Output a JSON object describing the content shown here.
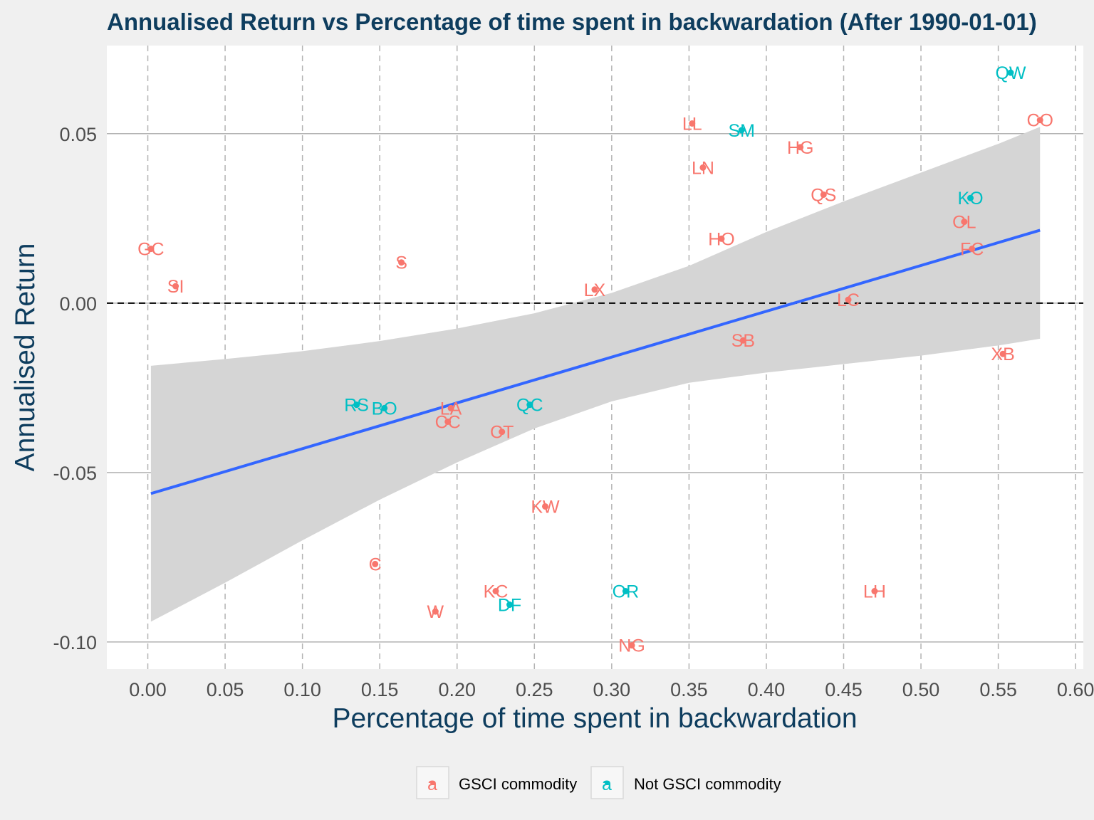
{
  "chart_data": {
    "type": "scatter",
    "title": "Annualised Return vs Percentage of time spent in backwardation (After 1990-01-01)",
    "xlabel": "Percentage of time spent in backwardation",
    "ylabel": "Annualised Return",
    "xlim": [
      -0.0265,
      0.605
    ],
    "ylim": [
      -0.108,
      0.076
    ],
    "x_ticks": [
      0.0,
      0.05,
      0.1,
      0.15,
      0.2,
      0.25,
      0.3,
      0.35,
      0.4,
      0.45,
      0.5,
      0.55,
      0.6
    ],
    "x_tick_labels": [
      "0.00",
      "0.05",
      "0.10",
      "0.15",
      "0.20",
      "0.25",
      "0.30",
      "0.35",
      "0.40",
      "0.45",
      "0.50",
      "0.55",
      "0.60"
    ],
    "y_ticks": [
      -0.1,
      -0.05,
      0.0,
      0.05
    ],
    "y_tick_labels": [
      "-0.10",
      "-0.05",
      "0.00",
      "0.05"
    ],
    "reference_line_y": 0,
    "grid": true,
    "legend": {
      "position": "bottom",
      "entries": [
        {
          "name": "GSCI commodity",
          "key": "gsci",
          "glyph": "a",
          "color": "#f8766d"
        },
        {
          "name": "Not GSCI commodity",
          "key": "not_gsci",
          "glyph": "a",
          "color": "#00bfc4"
        }
      ]
    },
    "trend_line": {
      "x": [
        0.002,
        0.577
      ],
      "y": [
        -0.0562,
        0.0215
      ],
      "color": "#3366ff"
    },
    "confidence_band": {
      "x": [
        0.002,
        0.05,
        0.1,
        0.15,
        0.2,
        0.25,
        0.3,
        0.35,
        0.4,
        0.45,
        0.5,
        0.55,
        0.577
      ],
      "upper": [
        -0.0185,
        -0.0165,
        -0.0142,
        -0.0112,
        -0.0075,
        -0.003,
        0.003,
        0.011,
        0.021,
        0.03,
        0.0385,
        0.047,
        0.052
      ],
      "lower": [
        -0.094,
        -0.0825,
        -0.07,
        -0.058,
        -0.047,
        -0.037,
        -0.029,
        -0.0235,
        -0.0205,
        -0.018,
        -0.0155,
        -0.0125,
        -0.0105
      ],
      "color": "#d5d5d5"
    },
    "points": [
      {
        "label": "GC",
        "x": 0.002,
        "y": 0.016,
        "group": "gsci"
      },
      {
        "label": "SI",
        "x": 0.018,
        "y": 0.005,
        "group": "gsci"
      },
      {
        "label": "S",
        "x": 0.164,
        "y": 0.012,
        "group": "gsci"
      },
      {
        "label": "LX",
        "x": 0.289,
        "y": 0.004,
        "group": "gsci"
      },
      {
        "label": "LL",
        "x": 0.352,
        "y": 0.053,
        "group": "gsci"
      },
      {
        "label": "SM",
        "x": 0.384,
        "y": 0.051,
        "group": "not_gsci"
      },
      {
        "label": "HG",
        "x": 0.422,
        "y": 0.046,
        "group": "gsci"
      },
      {
        "label": "LN",
        "x": 0.359,
        "y": 0.04,
        "group": "gsci"
      },
      {
        "label": "QS",
        "x": 0.437,
        "y": 0.032,
        "group": "gsci"
      },
      {
        "label": "HO",
        "x": 0.371,
        "y": 0.019,
        "group": "gsci"
      },
      {
        "label": "QW",
        "x": 0.558,
        "y": 0.068,
        "group": "not_gsci"
      },
      {
        "label": "CO",
        "x": 0.577,
        "y": 0.054,
        "group": "gsci"
      },
      {
        "label": "KO",
        "x": 0.532,
        "y": 0.031,
        "group": "not_gsci"
      },
      {
        "label": "OL",
        "x": 0.528,
        "y": 0.024,
        "group": "gsci"
      },
      {
        "label": "FC",
        "x": 0.533,
        "y": 0.016,
        "group": "gsci"
      },
      {
        "label": "LC",
        "x": 0.453,
        "y": 0.001,
        "group": "gsci"
      },
      {
        "label": "SB",
        "x": 0.385,
        "y": -0.011,
        "group": "gsci"
      },
      {
        "label": "XB",
        "x": 0.553,
        "y": -0.015,
        "group": "gsci"
      },
      {
        "label": "RS",
        "x": 0.135,
        "y": -0.03,
        "group": "not_gsci"
      },
      {
        "label": "BO",
        "x": 0.153,
        "y": -0.031,
        "group": "not_gsci"
      },
      {
        "label": "LA",
        "x": 0.196,
        "y": -0.031,
        "group": "gsci"
      },
      {
        "label": "CC",
        "x": 0.194,
        "y": -0.035,
        "group": "gsci"
      },
      {
        "label": "QC",
        "x": 0.247,
        "y": -0.03,
        "group": "not_gsci"
      },
      {
        "label": "CT",
        "x": 0.229,
        "y": -0.038,
        "group": "gsci"
      },
      {
        "label": "KW",
        "x": 0.257,
        "y": -0.06,
        "group": "gsci"
      },
      {
        "label": "C",
        "x": 0.147,
        "y": -0.077,
        "group": "gsci"
      },
      {
        "label": "W",
        "x": 0.186,
        "y": -0.091,
        "group": "gsci"
      },
      {
        "label": "KC",
        "x": 0.225,
        "y": -0.085,
        "group": "gsci"
      },
      {
        "label": "DF",
        "x": 0.234,
        "y": -0.089,
        "group": "not_gsci"
      },
      {
        "label": "OR",
        "x": 0.309,
        "y": -0.085,
        "group": "not_gsci"
      },
      {
        "label": "LH",
        "x": 0.47,
        "y": -0.085,
        "group": "gsci"
      },
      {
        "label": "NG",
        "x": 0.313,
        "y": -0.101,
        "group": "gsci"
      }
    ]
  }
}
